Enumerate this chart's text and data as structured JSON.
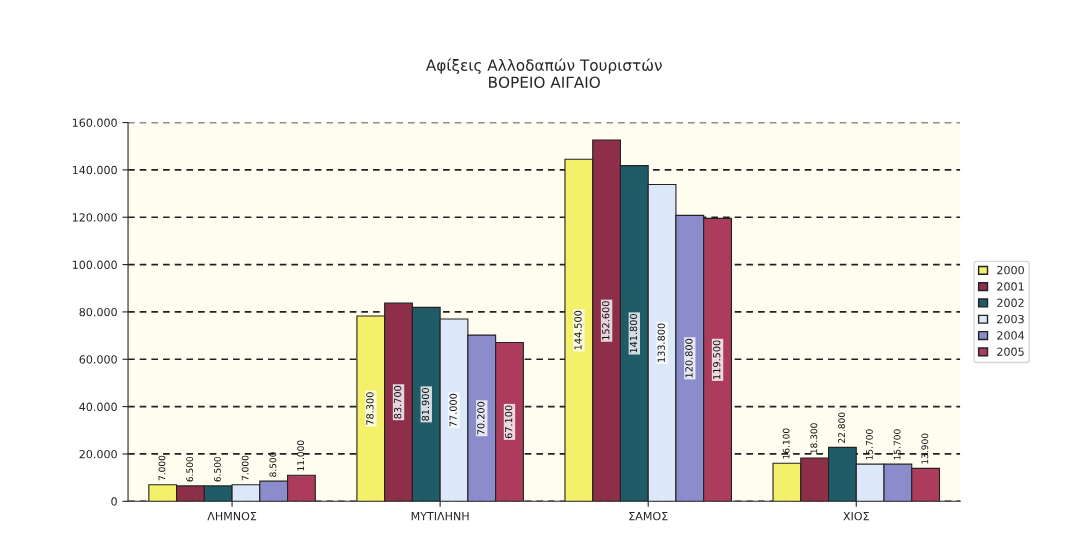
{
  "chart_data": {
    "type": "bar",
    "title": "Αφίξεις Αλλοδαπών Τουριστών\nΒΟΡΕΙΟ ΑΙΓΑΙΟ",
    "categories": [
      "ΛΗΜΝΟΣ",
      "ΜΥΤΙΛΗΝΗ",
      "ΣΑΜΟΣ",
      "ΧΙΟΣ"
    ],
    "series": [
      {
        "name": "2000",
        "color": "#f5f06a",
        "values": [
          7000,
          78300,
          144500,
          16100
        ],
        "value_labels": [
          "7.000",
          "78.300",
          "144.500",
          "16.100"
        ]
      },
      {
        "name": "2001",
        "color": "#8e2f4a",
        "values": [
          6500,
          83700,
          152600,
          18300
        ],
        "value_labels": [
          "6.500",
          "83.700",
          "152.600",
          "18.300"
        ]
      },
      {
        "name": "2002",
        "color": "#1f5c68",
        "values": [
          6500,
          81900,
          141800,
          22800
        ],
        "value_labels": [
          "6.500",
          "81.900",
          "141.800",
          "22.800"
        ]
      },
      {
        "name": "2003",
        "color": "#dce8f8",
        "values": [
          7000,
          77000,
          133800,
          15700
        ],
        "value_labels": [
          "7.000",
          "77.000",
          "133.800",
          "15.700"
        ]
      },
      {
        "name": "2004",
        "color": "#8a8ccc",
        "values": [
          8500,
          70200,
          120800,
          15700
        ],
        "value_labels": [
          "8.500",
          "70.200",
          "120.800",
          "15.700"
        ]
      },
      {
        "name": "2005",
        "color": "#ad3c5c",
        "values": [
          11000,
          67100,
          119500,
          13900
        ],
        "value_labels": [
          "11.000",
          "67.100",
          "119.500",
          "13.900"
        ]
      }
    ],
    "ylim": [
      0,
      160000
    ],
    "yticks": [
      {
        "value": 0,
        "label": "0"
      },
      {
        "value": 20000,
        "label": "20.000"
      },
      {
        "value": 40000,
        "label": "40.000"
      },
      {
        "value": 60000,
        "label": "60.000"
      },
      {
        "value": 80000,
        "label": "80.000"
      },
      {
        "value": 100000,
        "label": "100.000"
      },
      {
        "value": 120000,
        "label": "120.000"
      },
      {
        "value": 140000,
        "label": "140.000"
      },
      {
        "value": 160000,
        "label": "160.000"
      }
    ],
    "grid": "y",
    "legend": "right",
    "line_style": "dashed"
  }
}
